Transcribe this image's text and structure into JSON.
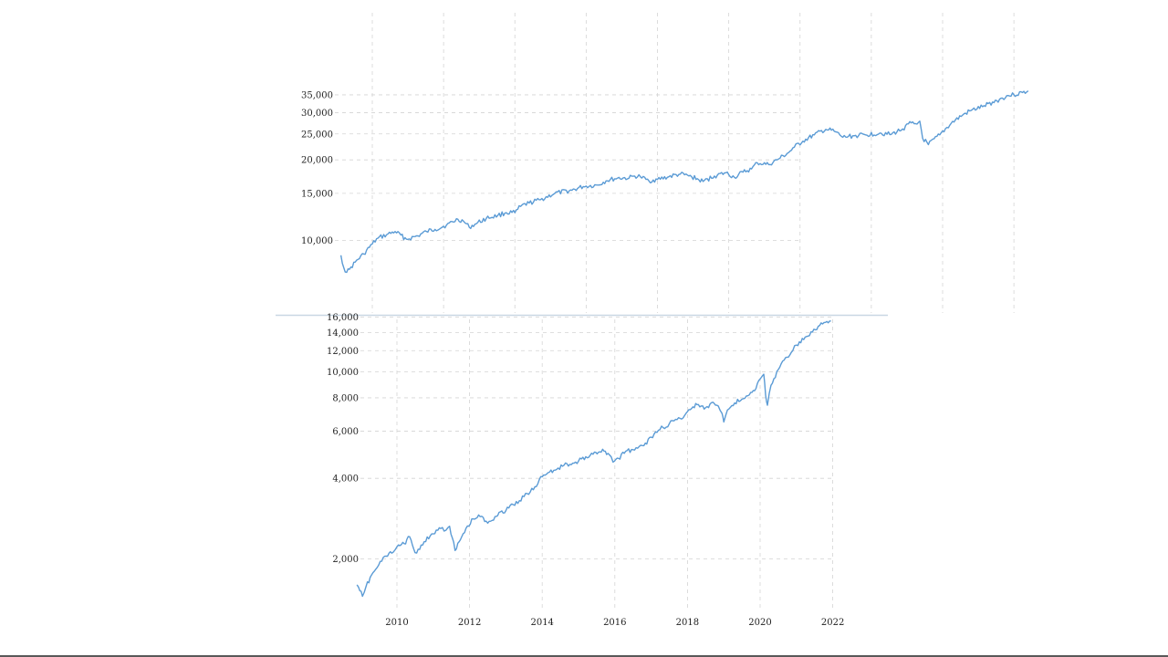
{
  "chart_data": [
    {
      "type": "line",
      "title": "",
      "xlabel": "",
      "ylabel": "",
      "scale_y": "log",
      "grid": true,
      "ylim": [
        7500,
        37500
      ],
      "xlim": [
        2008.9,
        2021.0
      ],
      "y_ticks": [
        {
          "value": 10000,
          "label": "10,000"
        },
        {
          "value": 15000,
          "label": "15,000"
        },
        {
          "value": 20000,
          "label": "20,000"
        },
        {
          "value": 25000,
          "label": "25,000"
        },
        {
          "value": 30000,
          "label": "30,000"
        },
        {
          "value": 35000,
          "label": "35,000"
        }
      ],
      "x_gridlines": [
        2009.5,
        2010.75,
        2012.0,
        2013.25,
        2014.5,
        2015.75,
        2017.0,
        2018.25,
        2019.5,
        2020.75
      ],
      "series": [
        {
          "color": "#5b9bd5",
          "x": [
            2008.95,
            2009.0,
            2009.05,
            2009.1,
            2009.2,
            2009.35,
            2009.5,
            2009.6,
            2009.75,
            2009.9,
            2010.1,
            2010.3,
            2010.45,
            2010.6,
            2010.8,
            2011.0,
            2011.1,
            2011.2,
            2011.3,
            2011.5,
            2011.7,
            2011.85,
            2012.0,
            2012.1,
            2012.25,
            2012.45,
            2012.7,
            2013.0,
            2013.2,
            2013.45,
            2013.6,
            2013.8,
            2014.0,
            2014.1,
            2014.2,
            2014.35,
            2014.5,
            2014.7,
            2014.9,
            2015.1,
            2015.3,
            2015.5,
            2015.7,
            2015.85,
            2016.0,
            2016.15,
            2016.25,
            2016.45,
            2016.6,
            2016.8,
            2016.9,
            2017.05,
            2017.25,
            2017.45,
            2017.6,
            2017.75,
            2017.95,
            2018.15,
            2018.4,
            2018.6,
            2018.8,
            2018.95,
            2019.0,
            2019.05,
            2019.1,
            2019.15,
            2019.25,
            2019.45,
            2019.65,
            2019.85,
            2020.0,
            2020.2,
            2020.45,
            2020.65,
            2020.75,
            2020.9,
            2021.0
          ],
          "y": [
            8800,
            7900,
            7600,
            7800,
            8300,
            8900,
            9700,
            10200,
            10500,
            10800,
            10100,
            10400,
            10800,
            11000,
            11400,
            12000,
            11800,
            11200,
            11500,
            12100,
            12400,
            12700,
            12700,
            13400,
            13800,
            14200,
            15000,
            15400,
            15900,
            16100,
            16700,
            17100,
            17100,
            17400,
            17300,
            16700,
            16900,
            17300,
            17700,
            17300,
            16600,
            17400,
            17900,
            17200,
            18000,
            18500,
            19500,
            19200,
            20000,
            21300,
            22300,
            23500,
            24800,
            26000,
            25600,
            24300,
            24600,
            24800,
            25200,
            24900,
            26100,
            27500,
            27300,
            27200,
            27900,
            24100,
            22800,
            24800,
            27400,
            29400,
            30600,
            31600,
            33300,
            34800,
            35000,
            35700,
            36200
          ]
        }
      ]
    },
    {
      "type": "line",
      "title": "",
      "xlabel": "",
      "ylabel": "",
      "scale_y": "log",
      "grid": true,
      "ylim": [
        1400,
        16200
      ],
      "xlim": [
        2008.85,
        2022.0
      ],
      "x_ticks": [
        2010,
        2012,
        2014,
        2016,
        2018,
        2020,
        2022
      ],
      "y_ticks": [
        {
          "value": 2000,
          "label": "2,000"
        },
        {
          "value": 4000,
          "label": "4,000"
        },
        {
          "value": 6000,
          "label": "6,000"
        },
        {
          "value": 8000,
          "label": "8,000"
        },
        {
          "value": 10000,
          "label": "10,000"
        },
        {
          "value": 12000,
          "label": "12,000"
        },
        {
          "value": 14000,
          "label": "14,000"
        },
        {
          "value": 16000,
          "label": "16,000"
        }
      ],
      "series": [
        {
          "color": "#5b9bd5",
          "x": [
            2008.9,
            2008.98,
            2009.05,
            2009.15,
            2009.3,
            2009.5,
            2009.7,
            2009.9,
            2010.0,
            2010.2,
            2010.35,
            2010.5,
            2010.75,
            2011.0,
            2011.25,
            2011.35,
            2011.45,
            2011.6,
            2011.75,
            2011.9,
            2012.1,
            2012.25,
            2012.5,
            2012.7,
            2012.85,
            2013.0,
            2013.2,
            2013.5,
            2013.8,
            2014.0,
            2014.2,
            2014.4,
            2014.6,
            2014.8,
            2015.0,
            2015.2,
            2015.4,
            2015.55,
            2015.7,
            2015.85,
            2015.95,
            2016.1,
            2016.3,
            2016.5,
            2016.8,
            2017.0,
            2017.2,
            2017.5,
            2017.8,
            2018.0,
            2018.15,
            2018.3,
            2018.5,
            2018.7,
            2018.85,
            2018.95,
            2019.0,
            2019.1,
            2019.3,
            2019.5,
            2019.7,
            2019.85,
            2020.0,
            2020.1,
            2020.15,
            2020.2,
            2020.3,
            2020.5,
            2020.7,
            2020.9,
            2021.0,
            2021.2,
            2021.4,
            2021.6,
            2021.8,
            2021.95
          ],
          "y": [
            1600,
            1520,
            1450,
            1580,
            1740,
            1900,
            2050,
            2120,
            2220,
            2280,
            2420,
            2110,
            2320,
            2480,
            2620,
            2560,
            2650,
            2150,
            2360,
            2600,
            2820,
            2920,
            2720,
            2880,
            3000,
            3030,
            3190,
            3420,
            3720,
            4050,
            4220,
            4320,
            4480,
            4500,
            4640,
            4820,
            4920,
            5010,
            5060,
            4900,
            4600,
            4750,
            5050,
            5120,
            5300,
            5700,
            6050,
            6400,
            6700,
            7100,
            7400,
            7550,
            7350,
            7700,
            7450,
            7000,
            6500,
            7200,
            7650,
            7900,
            8200,
            8500,
            9400,
            9800,
            8200,
            7500,
            8900,
            10200,
            11300,
            12000,
            12600,
            13200,
            14100,
            14800,
            15300,
            15500
          ]
        }
      ]
    }
  ]
}
